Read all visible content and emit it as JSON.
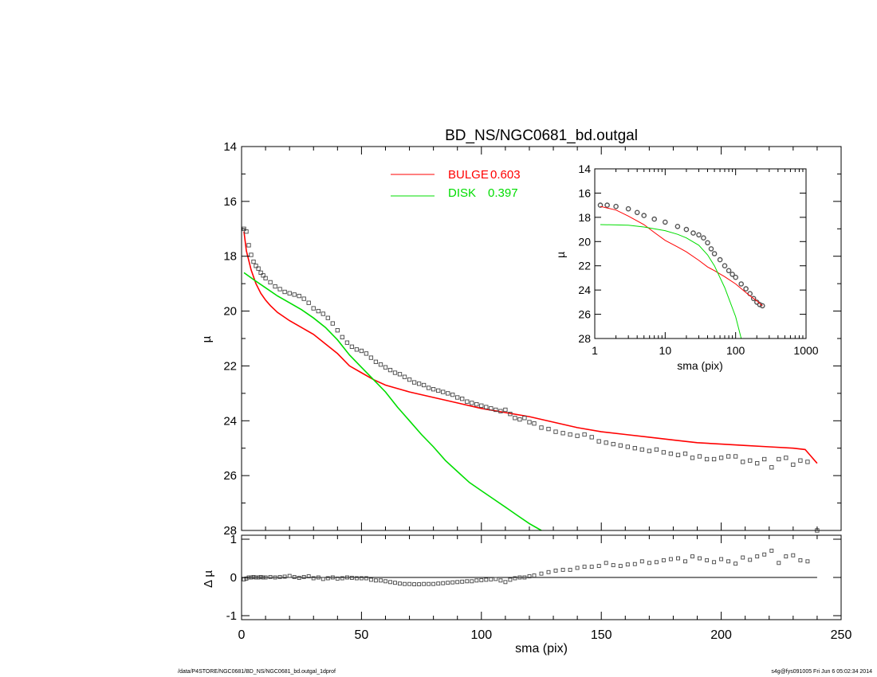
{
  "chart_data": [
    {
      "type": "line",
      "title": "BD_NS/NGC0681_bd.outgal",
      "xlabel": "sma (pix)",
      "ylabel": "µ",
      "xlim": [
        0,
        250
      ],
      "ylim": [
        28,
        14
      ],
      "y_inverted": true,
      "xticks": [
        0,
        50,
        100,
        150,
        200,
        250
      ],
      "yticks": [
        14,
        16,
        18,
        20,
        22,
        24,
        26,
        28
      ],
      "legend_position": "top-center",
      "series": [
        {
          "name": "BULGE",
          "legend_value": "0.603",
          "color": "#ff0000",
          "style": "line",
          "x": [
            1,
            2,
            4,
            6,
            8,
            10,
            12,
            15,
            20,
            25,
            30,
            35,
            40,
            45,
            50,
            55,
            60,
            70,
            80,
            90,
            100,
            110,
            120,
            130,
            140,
            150,
            160,
            170,
            180,
            190,
            200,
            210,
            220,
            230,
            235,
            240
          ],
          "y": [
            17.1,
            17.8,
            18.5,
            19.0,
            19.35,
            19.6,
            19.8,
            20.05,
            20.35,
            20.6,
            20.85,
            21.2,
            21.55,
            22.0,
            22.25,
            22.5,
            22.7,
            22.95,
            23.15,
            23.35,
            23.55,
            23.7,
            23.85,
            24.05,
            24.25,
            24.4,
            24.5,
            24.6,
            24.7,
            24.8,
            24.85,
            24.9,
            24.95,
            25.0,
            25.05,
            25.55
          ]
        },
        {
          "name": "DISK",
          "legend_value": "0.397",
          "color": "#00dd00",
          "style": "line",
          "x": [
            1,
            5,
            10,
            15,
            20,
            25,
            30,
            35,
            40,
            45,
            50,
            55,
            60,
            65,
            70,
            75,
            80,
            85,
            90,
            95,
            100,
            105,
            110,
            115,
            120,
            125
          ],
          "y": [
            18.6,
            18.85,
            19.15,
            19.45,
            19.7,
            19.95,
            20.25,
            20.6,
            21.05,
            21.6,
            22.05,
            22.5,
            22.95,
            23.5,
            24.0,
            24.5,
            24.95,
            25.45,
            25.85,
            26.25,
            26.55,
            26.85,
            27.15,
            27.45,
            27.75,
            28.0
          ]
        },
        {
          "name": "",
          "color": "#000000",
          "style": "points",
          "x": [
            1,
            2,
            3,
            4,
            5,
            6,
            7,
            8,
            9,
            10,
            12,
            14,
            16,
            18,
            20,
            22,
            24,
            26,
            28,
            30,
            32,
            34,
            36,
            38,
            40,
            42,
            44,
            46,
            48,
            50,
            52,
            54,
            56,
            58,
            60,
            62,
            64,
            66,
            68,
            70,
            72,
            74,
            76,
            78,
            80,
            82,
            84,
            86,
            88,
            90,
            92,
            94,
            96,
            98,
            100,
            102,
            104,
            106,
            108,
            110,
            112,
            114,
            116,
            118,
            120,
            122,
            125,
            128,
            131,
            134,
            137,
            140,
            143,
            146,
            149,
            152,
            155,
            158,
            161,
            164,
            167,
            170,
            173,
            176,
            179,
            182,
            185,
            188,
            191,
            194,
            197,
            200,
            203,
            206,
            209,
            212,
            215,
            218,
            221,
            224,
            227,
            230,
            233,
            236,
            240
          ],
          "y": [
            17.0,
            17.1,
            17.6,
            17.95,
            18.2,
            18.35,
            18.45,
            18.6,
            18.7,
            18.8,
            18.95,
            19.1,
            19.2,
            19.3,
            19.35,
            19.4,
            19.45,
            19.55,
            19.7,
            19.9,
            20.0,
            20.1,
            20.25,
            20.45,
            20.7,
            20.95,
            21.15,
            21.3,
            21.4,
            21.45,
            21.55,
            21.7,
            21.85,
            21.95,
            22.05,
            22.15,
            22.25,
            22.3,
            22.4,
            22.5,
            22.6,
            22.65,
            22.7,
            22.8,
            22.85,
            22.9,
            22.95,
            23.0,
            23.05,
            23.15,
            23.2,
            23.3,
            23.35,
            23.4,
            23.45,
            23.5,
            23.55,
            23.6,
            23.65,
            23.6,
            23.75,
            23.9,
            23.95,
            23.9,
            24.05,
            24.1,
            24.25,
            24.3,
            24.4,
            24.45,
            24.5,
            24.55,
            24.5,
            24.6,
            24.75,
            24.8,
            24.85,
            24.9,
            24.95,
            25.0,
            25.05,
            25.1,
            25.05,
            25.15,
            25.2,
            25.25,
            25.2,
            25.35,
            25.3,
            25.4,
            25.4,
            25.35,
            25.3,
            25.3,
            25.5,
            25.45,
            25.55,
            25.4,
            25.7,
            25.4,
            25.35,
            25.6,
            25.45,
            25.5,
            28.0
          ]
        }
      ]
    },
    {
      "type": "scatter",
      "xlabel": "sma (pix)",
      "ylabel": "Δ µ",
      "xlim": [
        0,
        250
      ],
      "ylim": [
        -1,
        1
      ],
      "xticks": [
        0,
        50,
        100,
        150,
        200,
        250
      ],
      "yticks": [
        -1,
        0,
        1
      ],
      "reference_line_y": 0,
      "series": [
        {
          "name": "",
          "color": "#000000",
          "x": [
            1,
            2,
            3,
            4,
            5,
            6,
            7,
            8,
            9,
            10,
            12,
            14,
            16,
            18,
            20,
            22,
            24,
            26,
            28,
            30,
            32,
            34,
            36,
            38,
            40,
            42,
            44,
            46,
            48,
            50,
            52,
            54,
            56,
            58,
            60,
            62,
            64,
            66,
            68,
            70,
            72,
            74,
            76,
            78,
            80,
            82,
            84,
            86,
            88,
            90,
            92,
            94,
            96,
            98,
            100,
            102,
            104,
            106,
            108,
            110,
            112,
            114,
            116,
            118,
            120,
            122,
            125,
            128,
            131,
            134,
            137,
            140,
            143,
            146,
            149,
            152,
            155,
            158,
            161,
            164,
            167,
            170,
            173,
            176,
            179,
            182,
            185,
            188,
            191,
            194,
            197,
            200,
            203,
            206,
            209,
            212,
            215,
            218,
            221,
            224,
            227,
            230,
            233,
            236
          ],
          "y": [
            -0.05,
            -0.03,
            0.0,
            0.0,
            0.01,
            0.0,
            0.0,
            0.01,
            0.0,
            0.0,
            0.01,
            0.0,
            0.01,
            0.02,
            0.04,
            0.01,
            -0.01,
            0.01,
            0.03,
            -0.02,
            0.0,
            -0.04,
            -0.02,
            0.0,
            -0.03,
            -0.02,
            0.0,
            -0.01,
            -0.02,
            -0.02,
            -0.02,
            -0.06,
            -0.08,
            -0.08,
            -0.1,
            -0.12,
            -0.14,
            -0.16,
            -0.17,
            -0.17,
            -0.18,
            -0.18,
            -0.17,
            -0.17,
            -0.17,
            -0.16,
            -0.15,
            -0.14,
            -0.13,
            -0.12,
            -0.11,
            -0.1,
            -0.1,
            -0.08,
            -0.07,
            -0.06,
            -0.05,
            -0.04,
            -0.08,
            -0.12,
            -0.06,
            -0.02,
            0.0,
            0.0,
            0.03,
            0.05,
            0.1,
            0.14,
            0.18,
            0.2,
            0.2,
            0.25,
            0.28,
            0.28,
            0.3,
            0.38,
            0.32,
            0.3,
            0.34,
            0.35,
            0.42,
            0.38,
            0.4,
            0.45,
            0.48,
            0.5,
            0.42,
            0.55,
            0.5,
            0.45,
            0.4,
            0.48,
            0.42,
            0.36,
            0.52,
            0.46,
            0.55,
            0.6,
            0.7,
            0.38,
            0.55,
            0.58,
            0.45,
            0.42
          ]
        }
      ]
    },
    {
      "type": "line",
      "xlabel": "sma (pix)",
      "ylabel": "µ",
      "x_scale": "log",
      "xlim": [
        1,
        1000
      ],
      "ylim": [
        28,
        14
      ],
      "y_inverted": true,
      "xticks": [
        1,
        10,
        100,
        1000
      ],
      "yticks": [
        14,
        16,
        18,
        20,
        22,
        24,
        26,
        28
      ],
      "series": [
        {
          "name": "",
          "color": "#555555",
          "style": "points",
          "x": [
            1.2,
            1.5,
            2,
            3,
            4,
            5,
            7,
            10,
            15,
            20,
            25,
            30,
            35,
            40,
            45,
            50,
            60,
            70,
            80,
            90,
            100,
            120,
            140,
            160,
            180,
            200,
            220,
            240
          ],
          "y": [
            17.0,
            17.0,
            17.1,
            17.3,
            17.6,
            17.85,
            18.15,
            18.4,
            18.75,
            19.0,
            19.3,
            19.45,
            19.7,
            20.1,
            20.6,
            21.0,
            21.5,
            22.0,
            22.4,
            22.7,
            22.95,
            23.5,
            23.9,
            24.3,
            24.7,
            25.0,
            25.2,
            25.3
          ]
        },
        {
          "name": "",
          "color": "#ff0000",
          "style": "line",
          "x": [
            1.2,
            2,
            3,
            5,
            7,
            10,
            15,
            20,
            30,
            40,
            50,
            70,
            100,
            150,
            200,
            240
          ],
          "y": [
            17.1,
            17.4,
            17.9,
            18.6,
            19.25,
            19.9,
            20.45,
            20.85,
            21.55,
            22.1,
            22.4,
            22.9,
            23.5,
            24.35,
            24.9,
            25.3
          ]
        },
        {
          "name": "",
          "color": "#00dd00",
          "style": "line",
          "x": [
            1.2,
            3,
            5,
            10,
            15,
            20,
            30,
            40,
            50,
            70,
            100,
            120
          ],
          "y": [
            18.6,
            18.65,
            18.8,
            19.1,
            19.4,
            19.7,
            20.3,
            21.1,
            22.0,
            23.8,
            26.2,
            28.0
          ]
        }
      ]
    }
  ],
  "footer": {
    "left": "/data/P4STORE/NGC0681/BD_NS/NGC0681_bd.outgal_1dprof",
    "right": "s4g@fys091005  Fri Jun  6 05:02:34 2014"
  }
}
